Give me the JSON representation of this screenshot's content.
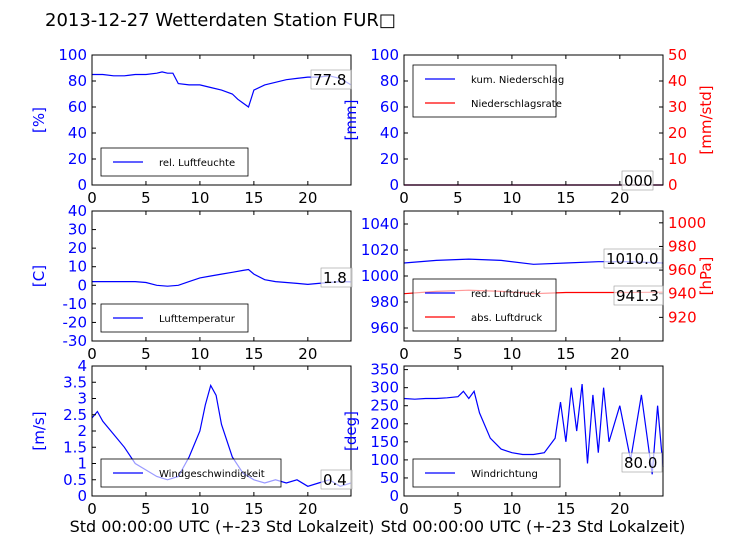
{
  "title": "2013-12-27 Wetterdaten Station FUR□",
  "colors": {
    "primary": "#0000ff",
    "secondary": "#ff0000",
    "frame": "#000000"
  },
  "xlabel": "Std 00:00:00 UTC (+-23 Std Lokalzeit)",
  "chart_data": [
    {
      "id": "humidity",
      "type": "line",
      "ylabel": "[%]",
      "xlim": [
        0,
        24
      ],
      "ylim": [
        0,
        100
      ],
      "xticks": [
        0,
        5,
        10,
        15,
        20
      ],
      "yticks": [
        0,
        20,
        40,
        60,
        80,
        100
      ],
      "value_label": "77.8",
      "legend": [
        {
          "name": "rel. Luftfeuchte",
          "color": "#0000ff"
        }
      ],
      "legend_pos": "lower-left",
      "series": [
        {
          "name": "rel. Luftfeuchte",
          "color": "#0000ff",
          "x": [
            0,
            1,
            2,
            3,
            4,
            5,
            6,
            6.5,
            7,
            7.5,
            8,
            9,
            10,
            11,
            12,
            13,
            13.5,
            14,
            14.5,
            15,
            16,
            17,
            18,
            19,
            20,
            21,
            22,
            23,
            24
          ],
          "y": [
            85,
            85,
            84,
            84,
            85,
            85,
            86,
            87,
            86,
            86,
            78,
            77,
            77,
            75,
            73,
            70,
            66,
            63,
            60,
            73,
            77,
            79,
            81,
            82,
            83,
            83,
            84,
            82,
            77
          ]
        }
      ]
    },
    {
      "id": "precip",
      "type": "line",
      "ylabel": "[mm]",
      "y2label": "[mm/std]",
      "xlim": [
        0,
        24
      ],
      "ylim": [
        0,
        100
      ],
      "y2lim": [
        0,
        50
      ],
      "xticks": [
        0,
        5,
        10,
        15,
        20
      ],
      "yticks": [
        0,
        20,
        40,
        60,
        80,
        100
      ],
      "y2ticks": [
        0,
        10,
        20,
        30,
        40,
        50
      ],
      "value_label": "000",
      "legend": [
        {
          "name": "kum. Niederschlag",
          "color": "#0000ff"
        },
        {
          "name": "Niederschlagsrate",
          "color": "#ff0000"
        }
      ],
      "legend_pos": "upper-left",
      "series": [
        {
          "name": "kum. Niederschlag",
          "color": "#0000ff",
          "x": [
            0,
            24
          ],
          "y": [
            0,
            0
          ]
        },
        {
          "name": "Niederschlagsrate",
          "color": "#ff0000",
          "axis": "y2",
          "x": [
            0,
            24
          ],
          "y": [
            0,
            0
          ]
        }
      ]
    },
    {
      "id": "temperature",
      "type": "line",
      "ylabel": "[C]",
      "xlim": [
        0,
        24
      ],
      "ylim": [
        -30,
        40
      ],
      "xticks": [
        0,
        5,
        10,
        15,
        20
      ],
      "yticks": [
        -30,
        -20,
        -10,
        0,
        10,
        20,
        30,
        40
      ],
      "value_label": "1.8",
      "legend": [
        {
          "name": "Lufttemperatur",
          "color": "#0000ff"
        }
      ],
      "legend_pos": "lower-left",
      "series": [
        {
          "name": "Lufttemperatur",
          "color": "#0000ff",
          "x": [
            0,
            2,
            4,
            5,
            6,
            7,
            8,
            9,
            10,
            11,
            12,
            13,
            14,
            14.5,
            15,
            16,
            17,
            18,
            19,
            20,
            21,
            22,
            23,
            24
          ],
          "y": [
            2,
            2,
            2,
            1.5,
            0,
            -0.5,
            0,
            2,
            4,
            5,
            6,
            7,
            8,
            8.5,
            6,
            3,
            2,
            1.5,
            1,
            0.5,
            1,
            1.5,
            2,
            1.8
          ]
        }
      ]
    },
    {
      "id": "pressure",
      "type": "line",
      "ylabel": "",
      "y2label": "[hPa]",
      "xlim": [
        0,
        24
      ],
      "ylim": [
        950,
        1050
      ],
      "y2lim": [
        900,
        1010
      ],
      "xticks": [
        0,
        5,
        10,
        15,
        20
      ],
      "yticks": [
        960,
        980,
        1000,
        1020,
        1040
      ],
      "y2ticks": [
        920,
        940,
        960,
        980,
        1000
      ],
      "value_label": "1010.0",
      "value_label2": "941.3",
      "legend": [
        {
          "name": "red. Luftdruck",
          "color": "#0000ff"
        },
        {
          "name": "abs. Luftdruck",
          "color": "#ff0000"
        }
      ],
      "legend_pos": "lower-left",
      "series": [
        {
          "name": "red. Luftdruck",
          "color": "#0000ff",
          "x": [
            0,
            3,
            6,
            9,
            12,
            15,
            18,
            21,
            24
          ],
          "y": [
            1010,
            1012,
            1013,
            1012,
            1009,
            1010,
            1011,
            1011,
            1010
          ]
        },
        {
          "name": "abs. Luftdruck",
          "color": "#ff0000",
          "axis": "y2",
          "x": [
            0,
            3,
            6,
            9,
            12,
            15,
            18,
            21,
            24
          ],
          "y": [
            940,
            942,
            943,
            942,
            940,
            941,
            941,
            941,
            941.3
          ]
        }
      ]
    },
    {
      "id": "wind_speed",
      "type": "line",
      "ylabel": "[m/s]",
      "xlim": [
        0,
        24
      ],
      "ylim": [
        0,
        4
      ],
      "xticks": [
        0,
        5,
        10,
        15,
        20
      ],
      "yticks": [
        0,
        0.5,
        1,
        1.5,
        2,
        2.5,
        3,
        3.5,
        4
      ],
      "value_label": "0.4",
      "legend": [
        {
          "name": "Windgeschwindigkeit",
          "color": "#0000ff"
        }
      ],
      "legend_pos": "lower-left",
      "series": [
        {
          "name": "Windgeschwindigkeit",
          "color": "#0000ff",
          "x": [
            0,
            0.5,
            1,
            2,
            3,
            4,
            5,
            6,
            7,
            8,
            9,
            10,
            10.5,
            11,
            11.5,
            12,
            13,
            14,
            15,
            16,
            17,
            18,
            19,
            20,
            21,
            22,
            23,
            24
          ],
          "y": [
            2.4,
            2.6,
            2.3,
            1.9,
            1.5,
            1.0,
            0.8,
            0.6,
            0.5,
            0.6,
            1.2,
            2.0,
            2.8,
            3.4,
            3.1,
            2.2,
            1.2,
            0.7,
            0.5,
            0.4,
            0.5,
            0.4,
            0.5,
            0.3,
            0.4,
            0.5,
            0.3,
            0.4
          ]
        }
      ]
    },
    {
      "id": "wind_direction",
      "type": "line",
      "ylabel": "[deg]",
      "xlim": [
        0,
        24
      ],
      "ylim": [
        0,
        360
      ],
      "xticks": [
        0,
        5,
        10,
        15,
        20
      ],
      "yticks": [
        0,
        50,
        100,
        150,
        200,
        250,
        300,
        350
      ],
      "value_label": "80.0",
      "legend": [
        {
          "name": "Windrichtung",
          "color": "#0000ff"
        }
      ],
      "legend_pos": "lower-left",
      "series": [
        {
          "name": "Windrichtung",
          "color": "#0000ff",
          "x": [
            0,
            1,
            2,
            3,
            4,
            5,
            5.5,
            6,
            6.5,
            7,
            8,
            9,
            10,
            11,
            12,
            13,
            14,
            14.5,
            15,
            15.5,
            16,
            16.5,
            17,
            17.5,
            18,
            18.5,
            19,
            20,
            21,
            22,
            23,
            23.5,
            24
          ],
          "y": [
            270,
            268,
            270,
            270,
            272,
            275,
            290,
            270,
            290,
            230,
            160,
            130,
            120,
            115,
            115,
            120,
            160,
            260,
            150,
            300,
            180,
            310,
            90,
            280,
            120,
            300,
            150,
            250,
            100,
            280,
            60,
            250,
            80
          ]
        }
      ]
    }
  ]
}
